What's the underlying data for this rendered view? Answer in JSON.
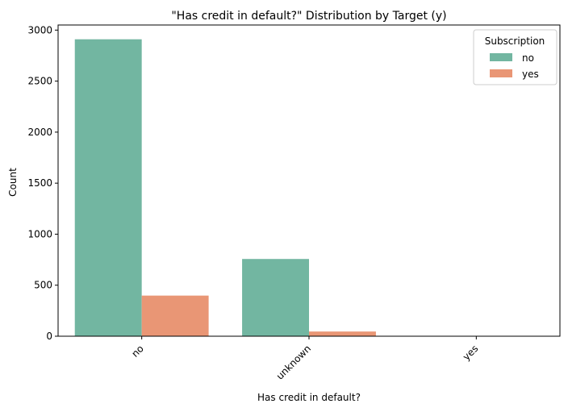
{
  "chart_data": {
    "type": "bar",
    "title": "\"Has credit in default?\" Distribution by Target (y)",
    "xlabel": "Has credit in default?",
    "ylabel": "Count",
    "categories": [
      "no",
      "unknown",
      "yes"
    ],
    "series": [
      {
        "name": "no",
        "color": "#72b6a1",
        "values": [
          2910,
          757,
          0
        ]
      },
      {
        "name": "yes",
        "color": "#e99675",
        "values": [
          398,
          46,
          0
        ]
      }
    ],
    "ylim": [
      0,
      3050
    ],
    "yticks": [
      0,
      500,
      1000,
      1500,
      2000,
      2500,
      3000
    ],
    "grid": false,
    "legend": {
      "title": "Subscription",
      "placement": "top-right"
    }
  }
}
